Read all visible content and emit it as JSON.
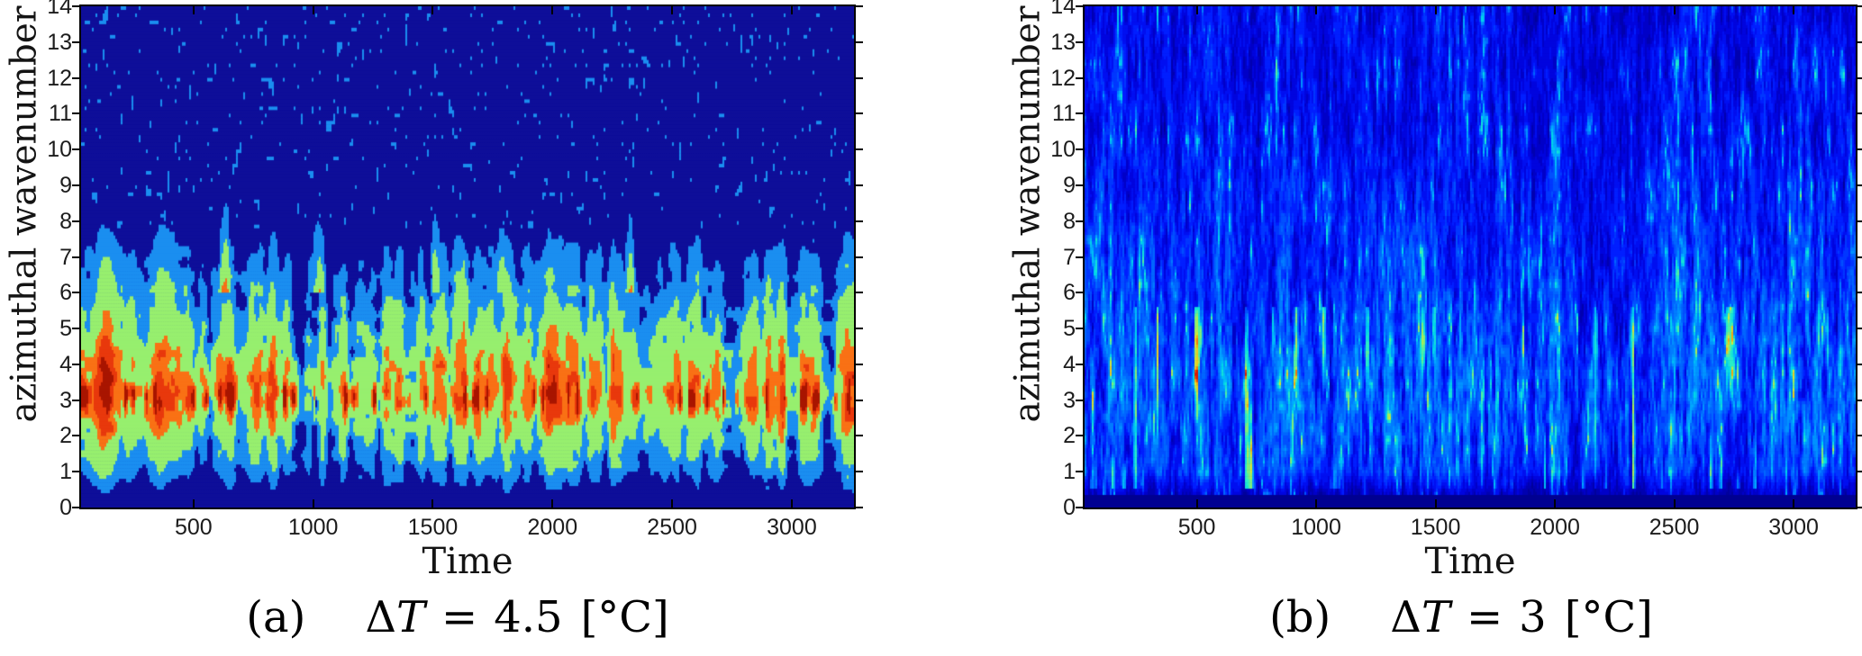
{
  "chart_data": [
    {
      "type": "heatmap",
      "panel": "a",
      "xlabel": "Time",
      "ylabel": "azimuthal wavenumber",
      "xlim": [
        30,
        3260
      ],
      "ylim": [
        0,
        14
      ],
      "xticks": [
        500,
        1000,
        1500,
        2000,
        2500,
        3000
      ],
      "yticks": [
        0,
        1,
        2,
        3,
        4,
        5,
        6,
        7,
        8,
        9,
        10,
        11,
        12,
        13,
        14
      ],
      "caption": {
        "index": "(a)",
        "delta": "Δ",
        "variable": "T",
        "equals": "=",
        "value": "4.5",
        "unit": "[°C]"
      },
      "colormap": {
        "style": "discrete-filled-contour",
        "colors": [
          "#0e0e99",
          "#1a8ef0",
          "#97ef6e",
          "#f97115",
          "#e8380c",
          "#a81500"
        ],
        "thresholds": [
          0.3,
          0.52,
          0.88,
          1.1,
          1.32
        ]
      },
      "intensity_profile_by_wavenumber": [
        0.08,
        0.36,
        0.6,
        0.8,
        0.72,
        0.55,
        0.42,
        0.3,
        0.15,
        0.1,
        0.08,
        0.07,
        0.06,
        0.05,
        0.05
      ],
      "hotspot_band": {
        "wavenumber": 3,
        "note": "intermittent orange/red bursts along k≈3 for all times"
      },
      "seed": 101,
      "description": "Filled-contour time-wavenumber spectrogram: dominant energy band (green) at azimuthal wavenumbers 2–5 with intermittent orange/red cores at k≈3, azure envelope reaching k≈7 with occasional taller plumes, sparse azure speckles above k≈8 on a dark navy background, navy strip at k<0.5."
    },
    {
      "type": "heatmap",
      "panel": "b",
      "xlabel": "Time",
      "ylabel": "azimuthal wavenumber",
      "xlim": [
        30,
        3260
      ],
      "ylim": [
        0,
        14
      ],
      "xticks": [
        500,
        1000,
        1500,
        2000,
        2500,
        3000
      ],
      "yticks": [
        0,
        1,
        2,
        3,
        4,
        5,
        6,
        7,
        8,
        9,
        10,
        11,
        12,
        13,
        14
      ],
      "caption": {
        "index": "(b)",
        "delta": "Δ",
        "variable": "T",
        "equals": "=",
        "value": "3",
        "unit": "[°C]"
      },
      "colormap": {
        "style": "continuous-jet",
        "stops": [
          [
            0.0,
            "#000085"
          ],
          [
            0.09,
            "#0000a0"
          ],
          [
            0.18,
            "#0000d8"
          ],
          [
            0.26,
            "#0018ff"
          ],
          [
            0.34,
            "#004cff"
          ],
          [
            0.42,
            "#007aff"
          ],
          [
            0.5,
            "#00a8ff"
          ],
          [
            0.58,
            "#00d8e8"
          ],
          [
            0.66,
            "#2cf0c4"
          ],
          [
            0.74,
            "#8cf06c"
          ],
          [
            0.82,
            "#e6e428"
          ],
          [
            0.9,
            "#ff9808"
          ],
          [
            1.0,
            "#dd1600"
          ]
        ],
        "quantize_levels": 26
      },
      "intensity_profile_by_wavenumber": [
        0.08,
        0.3,
        0.34,
        0.35,
        0.34,
        0.32,
        0.3,
        0.285,
        0.27,
        0.255,
        0.245,
        0.235,
        0.23,
        0.225,
        0.22
      ],
      "hotspot_band": {
        "wavenumber_range": [
          1,
          5
        ],
        "note": "scattered yellow/orange flecks in lower half"
      },
      "seed": 202,
      "description": "Fine vertical-streak turbulence spectrogram: dominant royal-blue field with dark navy streak gaps, cyan/aqua highlights strongest below k≈7, occasional yellow-orange spots at k≈1–5, navy strip at k<0.3."
    }
  ]
}
